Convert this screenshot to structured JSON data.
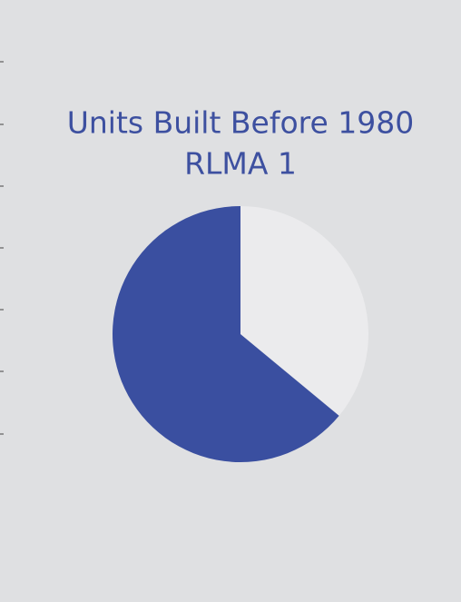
{
  "chart_data": {
    "type": "pie",
    "title": "Units Built Before 1980",
    "subtitle": "RLMA 1",
    "values": [
      36,
      64
    ],
    "colors": [
      "#ebebed",
      "#3a4fa0"
    ]
  }
}
